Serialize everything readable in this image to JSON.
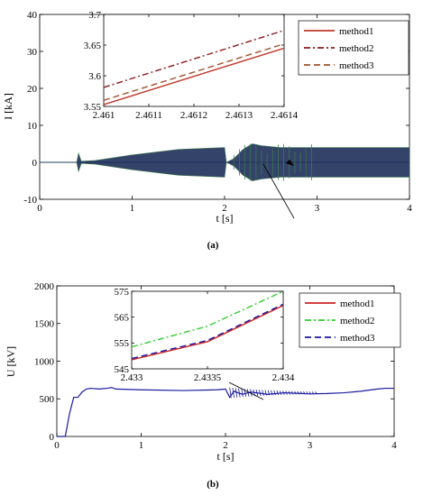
{
  "panel_labels": {
    "a": "(a)",
    "b": "(b)"
  },
  "chart_data": [
    {
      "type": "line",
      "panel": "(a)",
      "xlabel": "t [s]",
      "ylabel": "I [kA]",
      "xlim": [
        0,
        4
      ],
      "ylim": [
        -10,
        40
      ],
      "xticks": [
        "0",
        "1",
        "2",
        "3",
        "4"
      ],
      "yticks": [
        "-10",
        "0",
        "10",
        "20",
        "30",
        "40"
      ],
      "grid": false,
      "legend": "top-right",
      "series": [
        {
          "name": "method1",
          "color": "#c0392b",
          "style": "solid"
        },
        {
          "name": "method2",
          "color": "#8b1a1a",
          "style": "dashdot"
        },
        {
          "name": "method3",
          "color": "#a0522d",
          "style": "dashed"
        }
      ],
      "envelope_note_values": {
        "x": [
          0,
          0.4,
          0.42,
          0.45,
          0.6,
          1.0,
          1.5,
          2.0,
          2.02,
          2.1,
          2.2,
          2.3,
          2.4,
          2.6,
          2.8,
          3.0,
          3.2,
          3.4,
          3.6,
          3.8,
          4.0
        ],
        "upper": [
          0,
          0,
          2.5,
          0.3,
          0.5,
          2.0,
          3.5,
          4.0,
          0,
          1.0,
          3.5,
          5.0,
          4.5,
          4.0,
          4.0,
          4.0,
          4.0,
          4.0,
          4.0,
          4.0,
          4.0
        ],
        "lower": [
          0,
          0,
          -2.5,
          -0.3,
          -0.5,
          -2.0,
          -3.5,
          -4.0,
          0,
          -1.0,
          -3.5,
          -5.0,
          -4.5,
          -4.0,
          -4.0,
          -4.0,
          -4.0,
          -4.0,
          -4.0,
          -4.0,
          -4.0
        ]
      },
      "inset": {
        "xlim": [
          2.461,
          2.4614
        ],
        "ylim": [
          3.55,
          3.7
        ],
        "xticks": [
          "2.461",
          "2.4611",
          "2.4612",
          "2.4613",
          "2.4614"
        ],
        "yticks": [
          "3.55",
          "3.6",
          "3.65",
          "3.7"
        ],
        "series": [
          {
            "name": "method1",
            "x": [
              2.461,
              2.4614
            ],
            "y": [
              3.553,
              3.645
            ]
          },
          {
            "name": "method2",
            "x": [
              2.461,
              2.4614
            ],
            "y": [
              3.581,
              3.674
            ]
          },
          {
            "name": "method3",
            "x": [
              2.461,
              2.4614
            ],
            "y": [
              3.56,
              3.652
            ]
          }
        ]
      }
    },
    {
      "type": "line",
      "panel": "(b)",
      "xlabel": "t [s]",
      "ylabel": "U [kV]",
      "xlim": [
        0,
        4
      ],
      "ylim": [
        0,
        2000
      ],
      "xticks": [
        "0",
        "1",
        "2",
        "3",
        "4"
      ],
      "yticks": [
        "0",
        "500",
        "1000",
        "1500",
        "2000"
      ],
      "grid": false,
      "legend": "top-right",
      "series": [
        {
          "name": "method1",
          "color": "#cc2222",
          "style": "solid"
        },
        {
          "name": "method2",
          "color": "#33cc33",
          "style": "dashdot"
        },
        {
          "name": "method3",
          "color": "#1a1aa0",
          "style": "dashed"
        }
      ],
      "main_curve": {
        "x": [
          0,
          0.1,
          0.12,
          0.15,
          0.2,
          0.25,
          0.3,
          0.35,
          0.4,
          0.5,
          0.6,
          0.65,
          0.7,
          1.0,
          1.5,
          1.9,
          2.0,
          2.05,
          2.1,
          2.2,
          2.3,
          2.5,
          2.7,
          2.9,
          3.0,
          3.2,
          3.4,
          3.6,
          3.8,
          3.9,
          4.0
        ],
        "y": [
          0,
          0,
          120,
          300,
          520,
          520,
          590,
          630,
          640,
          630,
          640,
          650,
          630,
          620,
          610,
          620,
          630,
          520,
          600,
          560,
          590,
          560,
          580,
          570,
          565,
          570,
          580,
          600,
          630,
          640,
          640
        ]
      },
      "inset": {
        "xlim": [
          2.433,
          2.434
        ],
        "ylim": [
          545,
          575
        ],
        "xticks": [
          "2.433",
          "2.4335",
          "2.434"
        ],
        "yticks": [
          "545",
          "555",
          "565",
          "575"
        ],
        "series": [
          {
            "name": "method1",
            "x": [
              2.433,
              2.4335,
              2.434
            ],
            "y": [
              548.5,
              555.5,
              569.5
            ]
          },
          {
            "name": "method2",
            "x": [
              2.433,
              2.4335,
              2.434
            ],
            "y": [
              553.5,
              561.5,
              575.0
            ]
          },
          {
            "name": "method3",
            "x": [
              2.433,
              2.4335,
              2.434
            ],
            "y": [
              549.0,
              556.0,
              570.0
            ]
          }
        ]
      }
    }
  ]
}
